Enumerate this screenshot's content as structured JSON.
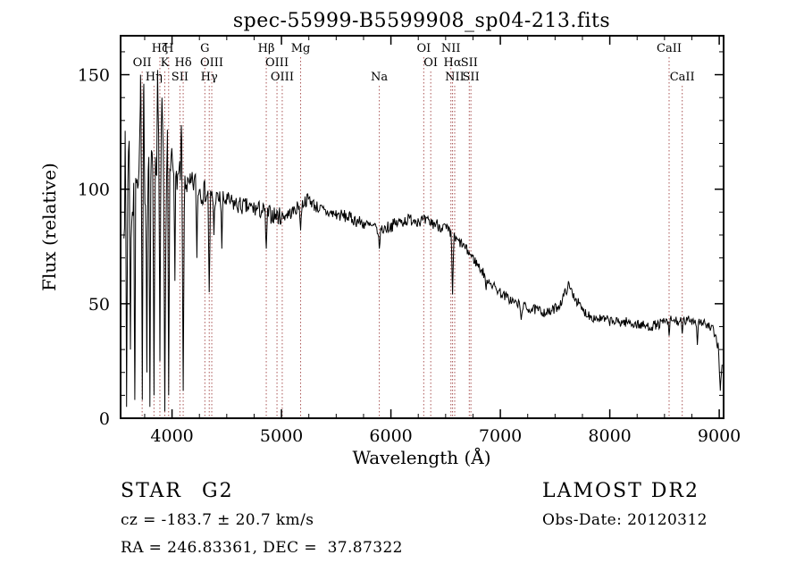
{
  "title": "spec-55999-B5599908_sp04-213.fits",
  "annotations": {
    "object_type": "STAR",
    "subclass": "G2",
    "survey": "LAMOST DR2",
    "cz": "cz = -183.7 ± 20.7 km/s",
    "obs_date": "Obs-Date: 20120312",
    "radec": "RA = 246.83361, DEC =  37.87322"
  },
  "chart_data": {
    "type": "line",
    "title": "spec-55999-B5599908_sp04-213.fits",
    "xlabel": "Wavelength (Å)",
    "ylabel": "Flux (relative)",
    "xlim": [
      3530,
      9040
    ],
    "ylim": [
      0,
      167
    ],
    "xticks": [
      4000,
      5000,
      6000,
      7000,
      8000,
      9000
    ],
    "yticks": [
      0,
      50,
      100,
      150
    ],
    "x_minor_step": 250,
    "y_minor_step": 10,
    "line_color": "#000000",
    "marker_line_color": "#aa5555",
    "grid": false,
    "legend": "none",
    "spectrum_start": 3560,
    "spectrum_end": 9030,
    "sample_step": 6,
    "noise_seed": 7,
    "spectrum_anchors": {
      "x": [
        3560,
        3600,
        3640,
        3680,
        3700,
        3720,
        3760,
        3800,
        3850,
        3900,
        3950,
        4000,
        4050,
        4100,
        4150,
        4200,
        4300,
        4400,
        4500,
        4600,
        4700,
        4800,
        4900,
        5000,
        5100,
        5170,
        5250,
        5300,
        5400,
        5500,
        5600,
        5700,
        5800,
        5900,
        6000,
        6100,
        6200,
        6300,
        6400,
        6500,
        6560,
        6650,
        6750,
        6850,
        6950,
        7050,
        7150,
        7250,
        7350,
        7450,
        7550,
        7620,
        7680,
        7750,
        7850,
        7950,
        8050,
        8150,
        8250,
        8350,
        8450,
        8550,
        8650,
        8750,
        8850,
        8950,
        9000,
        9030
      ],
      "y": [
        100,
        115,
        95,
        120,
        105,
        130,
        95,
        125,
        110,
        120,
        105,
        112,
        105,
        108,
        100,
        103,
        98,
        96,
        95,
        93,
        92,
        91,
        89,
        88,
        90,
        93,
        96,
        93,
        90,
        89,
        88,
        86,
        84,
        82,
        84,
        86,
        87,
        86,
        85,
        83,
        79,
        76,
        70,
        63,
        57,
        53,
        50,
        48,
        47,
        46,
        50,
        58,
        53,
        47,
        44,
        43,
        42,
        42,
        41,
        40,
        41,
        43,
        42,
        43,
        42,
        38,
        30,
        22
      ]
    },
    "noise_regions": [
      {
        "from": 3560,
        "to": 3750,
        "amp": 22
      },
      {
        "from": 3750,
        "to": 4000,
        "amp": 13
      },
      {
        "from": 4000,
        "to": 4300,
        "amp": 6
      },
      {
        "from": 4300,
        "to": 5000,
        "amp": 4
      },
      {
        "from": 5000,
        "to": 6600,
        "amp": 2.8
      },
      {
        "from": 6600,
        "to": 9040,
        "amp": 2.2
      }
    ],
    "absorption_spikes": [
      {
        "x": 3585,
        "y": 5,
        "w": 10
      },
      {
        "x": 3620,
        "y": 30,
        "w": 9
      },
      {
        "x": 3660,
        "y": 8,
        "w": 10
      },
      {
        "x": 3728,
        "y": 8,
        "w": 10
      },
      {
        "x": 3770,
        "y": 20,
        "w": 9
      },
      {
        "x": 3798,
        "y": 5,
        "w": 10
      },
      {
        "x": 3835,
        "y": 10,
        "w": 10
      },
      {
        "x": 3889,
        "y": 25,
        "w": 10
      },
      {
        "x": 3934,
        "y": 3,
        "w": 12
      },
      {
        "x": 3969,
        "y": 10,
        "w": 12
      },
      {
        "x": 4026,
        "y": 60,
        "w": 9
      },
      {
        "x": 4102,
        "y": 12,
        "w": 12
      },
      {
        "x": 4227,
        "y": 70,
        "w": 9
      },
      {
        "x": 4340,
        "y": 55,
        "w": 12
      },
      {
        "x": 4383,
        "y": 80,
        "w": 9
      },
      {
        "x": 4455,
        "y": 74,
        "w": 9
      },
      {
        "x": 4861,
        "y": 74,
        "w": 12
      },
      {
        "x": 5175,
        "y": 82,
        "w": 12
      },
      {
        "x": 5894,
        "y": 74,
        "w": 13
      },
      {
        "x": 6563,
        "y": 54,
        "w": 12
      },
      {
        "x": 6870,
        "y": 56,
        "w": 11
      },
      {
        "x": 7190,
        "y": 43,
        "w": 11
      },
      {
        "x": 8542,
        "y": 36,
        "w": 11
      },
      {
        "x": 8662,
        "y": 37,
        "w": 10
      },
      {
        "x": 8800,
        "y": 32,
        "w": 11
      },
      {
        "x": 9010,
        "y": 12,
        "w": 16
      }
    ],
    "emission_spikes": [
      {
        "x": 3712,
        "y": 150,
        "w": 8
      },
      {
        "x": 3742,
        "y": 146,
        "w": 8
      },
      {
        "x": 3868,
        "y": 152,
        "w": 9
      },
      {
        "x": 3908,
        "y": 140,
        "w": 8
      },
      {
        "x": 3958,
        "y": 126,
        "w": 8
      },
      {
        "x": 4085,
        "y": 128,
        "w": 8
      }
    ],
    "spectral_lines": [
      {
        "wl": 3727,
        "label": "OII",
        "row": 2
      },
      {
        "wl": 3835,
        "label": "Hη",
        "row": 3
      },
      {
        "wl": 3889,
        "label": "Hζ",
        "row": 1
      },
      {
        "wl": 3934,
        "label": "K",
        "row": 2
      },
      {
        "wl": 3969,
        "label": "H",
        "row": 1
      },
      {
        "wl": 4072,
        "label": "SII",
        "row": 3
      },
      {
        "wl": 4102,
        "label": "Hδ",
        "row": 2
      },
      {
        "wl": 4300,
        "label": "G",
        "row": 1
      },
      {
        "wl": 4340,
        "label": "Hγ",
        "row": 3
      },
      {
        "wl": 4363,
        "label": "OIII",
        "row": 2
      },
      {
        "wl": 4861,
        "label": "Hβ",
        "row": 1
      },
      {
        "wl": 4959,
        "label": "OIII",
        "row": 2
      },
      {
        "wl": 5007,
        "label": "OIII",
        "row": 3
      },
      {
        "wl": 5175,
        "label": "Mg",
        "row": 1
      },
      {
        "wl": 5894,
        "label": "Na",
        "row": 3
      },
      {
        "wl": 6300,
        "label": "OI",
        "row": 1
      },
      {
        "wl": 6364,
        "label": "OI",
        "row": 2
      },
      {
        "wl": 6548,
        "label": "NII",
        "row": 1
      },
      {
        "wl": 6563,
        "label": "Hα",
        "row": 2
      },
      {
        "wl": 6583,
        "label": "NII",
        "row": 3
      },
      {
        "wl": 6716,
        "label": "SII",
        "row": 2
      },
      {
        "wl": 6731,
        "label": "SII",
        "row": 3
      },
      {
        "wl": 8542,
        "label": "CaII",
        "row": 1
      },
      {
        "wl": 8662,
        "label": "CaII",
        "row": 3
      }
    ]
  }
}
